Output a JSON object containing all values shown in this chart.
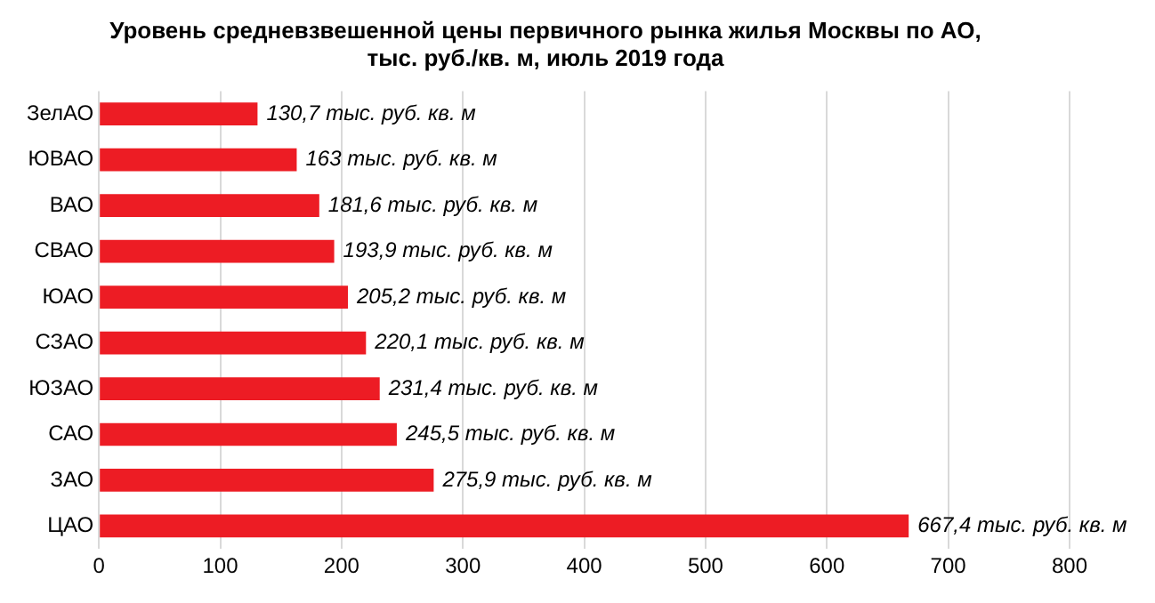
{
  "chart_data": {
    "type": "bar",
    "orientation": "horizontal",
    "title": "Уровень средневзвешенной цены первичного рынка жилья Москвы по АО,\nтыс. руб./кв. м, июль 2019 года",
    "categories": [
      "ЗелАО",
      "ЮВАО",
      "ВАО",
      "СВАО",
      "ЮАО",
      "СЗАО",
      "ЮЗАО",
      "САО",
      "ЗАО",
      "ЦАО"
    ],
    "values": [
      130.7,
      163,
      181.6,
      193.9,
      205.2,
      220.1,
      231.4,
      245.5,
      275.9,
      667.4
    ],
    "value_labels": [
      "130,7 тыс. руб. кв. м",
      "163 тыс. руб. кв. м",
      "181,6 тыс. руб. кв. м",
      "193,9 тыс. руб. кв. м",
      "205,2 тыс. руб. кв. м",
      "220,1 тыс. руб. кв. м",
      "231,4 тыс. руб. кв. м",
      "245,5 тыс. руб. кв. м",
      "275,9 тыс. руб. кв. м",
      "667,4 тыс. руб. кв. м"
    ],
    "color": "#ed1c24",
    "xlim": [
      0,
      800
    ],
    "xticks": [
      0,
      100,
      200,
      300,
      400,
      500,
      600,
      700,
      800
    ],
    "grid": "x",
    "legend": false
  }
}
